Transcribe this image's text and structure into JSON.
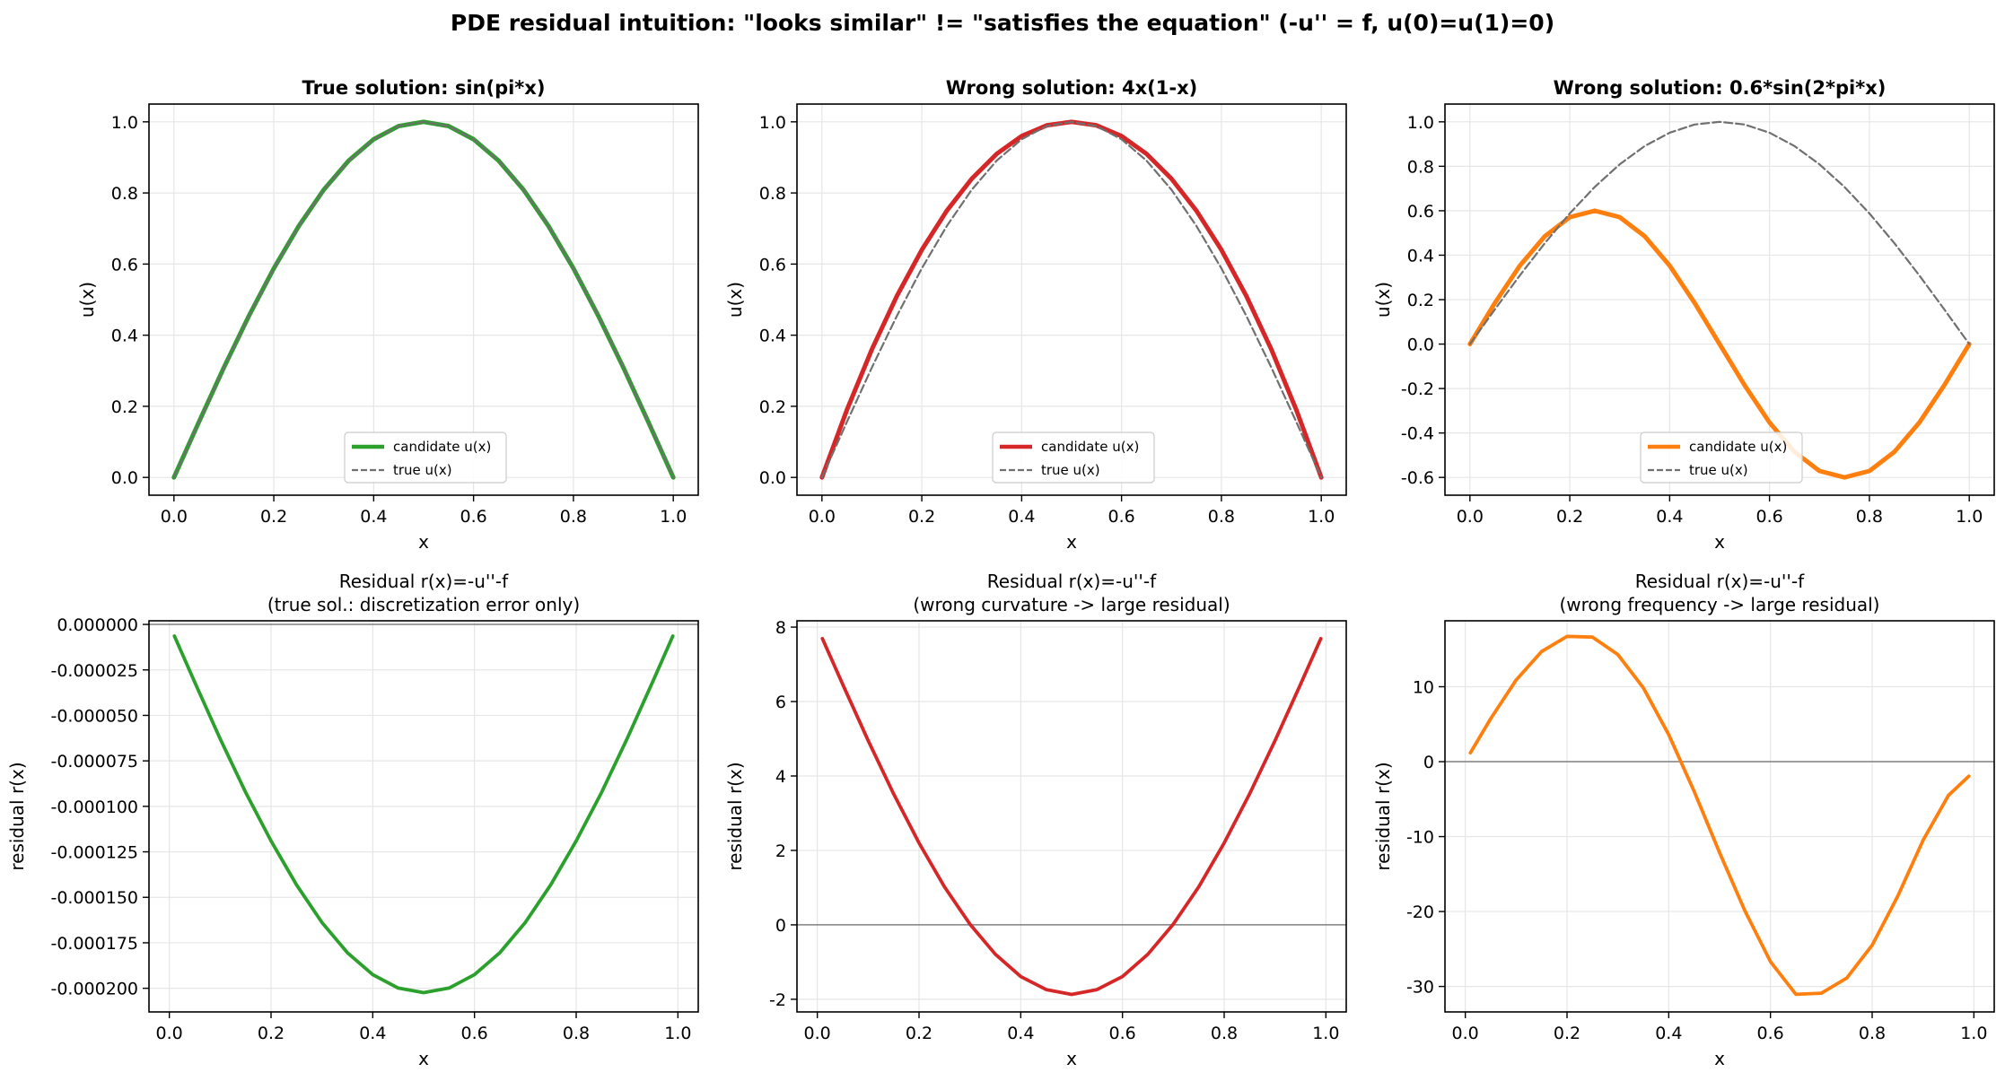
{
  "figure": {
    "suptitle": "PDE residual intuition: \"looks similar\" != \"satisfies the equation\"  (-u'' = f, u(0)=u(1)=0)"
  },
  "chart_data": [
    {
      "type": "line",
      "title": "True solution: sin(pi*x)",
      "title_bold": true,
      "xlabel": "x",
      "ylabel": "u(x)",
      "xlim": [
        -0.05,
        1.05
      ],
      "ylim": [
        -0.05,
        1.05
      ],
      "xticks": [
        0.0,
        0.2,
        0.4,
        0.6,
        0.8,
        1.0
      ],
      "xtick_labels": [
        "0.0",
        "0.2",
        "0.4",
        "0.6",
        "0.8",
        "1.0"
      ],
      "yticks": [
        0.0,
        0.2,
        0.4,
        0.6,
        0.8,
        1.0
      ],
      "ytick_labels": [
        "0.0",
        "0.2",
        "0.4",
        "0.6",
        "0.8",
        "1.0"
      ],
      "grid": true,
      "legend": "lower-center",
      "series": [
        {
          "name": "candidate u(x)",
          "color": "#2ca02c",
          "style": "solid",
          "x": [
            0.0,
            0.05,
            0.1,
            0.15,
            0.2,
            0.25,
            0.3,
            0.35,
            0.4,
            0.45,
            0.5,
            0.55,
            0.6,
            0.65,
            0.7,
            0.75,
            0.8,
            0.85,
            0.9,
            0.95,
            1.0
          ],
          "y": [
            0.0,
            0.156,
            0.309,
            0.454,
            0.588,
            0.707,
            0.809,
            0.891,
            0.951,
            0.988,
            1.0,
            0.988,
            0.951,
            0.891,
            0.809,
            0.707,
            0.588,
            0.454,
            0.309,
            0.156,
            0.0
          ]
        },
        {
          "name": "true u(x)",
          "color": "#707070",
          "style": "dashed",
          "x": [
            0.0,
            0.05,
            0.1,
            0.15,
            0.2,
            0.25,
            0.3,
            0.35,
            0.4,
            0.45,
            0.5,
            0.55,
            0.6,
            0.65,
            0.7,
            0.75,
            0.8,
            0.85,
            0.9,
            0.95,
            1.0
          ],
          "y": [
            0.0,
            0.156,
            0.309,
            0.454,
            0.588,
            0.707,
            0.809,
            0.891,
            0.951,
            0.988,
            1.0,
            0.988,
            0.951,
            0.891,
            0.809,
            0.707,
            0.588,
            0.454,
            0.309,
            0.156,
            0.0
          ]
        }
      ]
    },
    {
      "type": "line",
      "title": "Wrong solution: 4x(1-x)",
      "title_bold": true,
      "xlabel": "x",
      "ylabel": "u(x)",
      "xlim": [
        -0.05,
        1.05
      ],
      "ylim": [
        -0.05,
        1.05
      ],
      "xticks": [
        0.0,
        0.2,
        0.4,
        0.6,
        0.8,
        1.0
      ],
      "xtick_labels": [
        "0.0",
        "0.2",
        "0.4",
        "0.6",
        "0.8",
        "1.0"
      ],
      "yticks": [
        0.0,
        0.2,
        0.4,
        0.6,
        0.8,
        1.0
      ],
      "ytick_labels": [
        "0.0",
        "0.2",
        "0.4",
        "0.6",
        "0.8",
        "1.0"
      ],
      "grid": true,
      "legend": "lower-center",
      "series": [
        {
          "name": "candidate u(x)",
          "color": "#d62728",
          "style": "solid",
          "x": [
            0.0,
            0.05,
            0.1,
            0.15,
            0.2,
            0.25,
            0.3,
            0.35,
            0.4,
            0.45,
            0.5,
            0.55,
            0.6,
            0.65,
            0.7,
            0.75,
            0.8,
            0.85,
            0.9,
            0.95,
            1.0
          ],
          "y": [
            0.0,
            0.19,
            0.36,
            0.51,
            0.64,
            0.75,
            0.84,
            0.91,
            0.96,
            0.99,
            1.0,
            0.99,
            0.96,
            0.91,
            0.84,
            0.75,
            0.64,
            0.51,
            0.36,
            0.19,
            0.0
          ]
        },
        {
          "name": "true u(x)",
          "color": "#707070",
          "style": "dashed",
          "x": [
            0.0,
            0.05,
            0.1,
            0.15,
            0.2,
            0.25,
            0.3,
            0.35,
            0.4,
            0.45,
            0.5,
            0.55,
            0.6,
            0.65,
            0.7,
            0.75,
            0.8,
            0.85,
            0.9,
            0.95,
            1.0
          ],
          "y": [
            0.0,
            0.156,
            0.309,
            0.454,
            0.588,
            0.707,
            0.809,
            0.891,
            0.951,
            0.988,
            1.0,
            0.988,
            0.951,
            0.891,
            0.809,
            0.707,
            0.588,
            0.454,
            0.309,
            0.156,
            0.0
          ]
        }
      ]
    },
    {
      "type": "line",
      "title": "Wrong solution: 0.6*sin(2*pi*x)",
      "title_bold": true,
      "xlabel": "x",
      "ylabel": "u(x)",
      "xlim": [
        -0.05,
        1.05
      ],
      "ylim": [
        -0.68,
        1.08
      ],
      "xticks": [
        0.0,
        0.2,
        0.4,
        0.6,
        0.8,
        1.0
      ],
      "xtick_labels": [
        "0.0",
        "0.2",
        "0.4",
        "0.6",
        "0.8",
        "1.0"
      ],
      "yticks": [
        -0.6,
        -0.4,
        -0.2,
        0.0,
        0.2,
        0.4,
        0.6,
        0.8,
        1.0
      ],
      "ytick_labels": [
        "-0.6",
        "-0.4",
        "-0.2",
        "0.0",
        "0.2",
        "0.4",
        "0.6",
        "0.8",
        "1.0"
      ],
      "grid": true,
      "legend": "lower-center",
      "series": [
        {
          "name": "candidate u(x)",
          "color": "#ff7f0e",
          "style": "solid",
          "x": [
            0.0,
            0.05,
            0.1,
            0.15,
            0.2,
            0.25,
            0.3,
            0.35,
            0.4,
            0.45,
            0.5,
            0.55,
            0.6,
            0.65,
            0.7,
            0.75,
            0.8,
            0.85,
            0.9,
            0.95,
            1.0
          ],
          "y": [
            0.0,
            0.185,
            0.353,
            0.485,
            0.571,
            0.6,
            0.571,
            0.485,
            0.353,
            0.185,
            0.0,
            -0.185,
            -0.353,
            -0.485,
            -0.571,
            -0.6,
            -0.571,
            -0.485,
            -0.353,
            -0.185,
            0.0
          ]
        },
        {
          "name": "true u(x)",
          "color": "#707070",
          "style": "dashed",
          "x": [
            0.0,
            0.05,
            0.1,
            0.15,
            0.2,
            0.25,
            0.3,
            0.35,
            0.4,
            0.45,
            0.5,
            0.55,
            0.6,
            0.65,
            0.7,
            0.75,
            0.8,
            0.85,
            0.9,
            0.95,
            1.0
          ],
          "y": [
            0.0,
            0.156,
            0.309,
            0.454,
            0.588,
            0.707,
            0.809,
            0.891,
            0.951,
            0.988,
            1.0,
            0.988,
            0.951,
            0.891,
            0.809,
            0.707,
            0.588,
            0.454,
            0.309,
            0.156,
            0.0
          ]
        }
      ]
    },
    {
      "type": "line",
      "title": "Residual r(x)=-u''-f\n(true sol.: discretization error only)",
      "title_bold": false,
      "xlabel": "x",
      "ylabel": "residual r(x)",
      "xlim": [
        -0.04,
        1.04
      ],
      "ylim": [
        -0.000213,
        2e-06
      ],
      "xticks": [
        0.0,
        0.2,
        0.4,
        0.6,
        0.8,
        1.0
      ],
      "xtick_labels": [
        "0.0",
        "0.2",
        "0.4",
        "0.6",
        "0.8",
        "1.0"
      ],
      "yticks": [
        0.0,
        -2.5e-05,
        -5e-05,
        -7.5e-05,
        -0.0001,
        -0.000125,
        -0.00015,
        -0.000175,
        -0.0002
      ],
      "ytick_labels": [
        "0.000000",
        "-0.000025",
        "-0.000050",
        "-0.000075",
        "-0.000100",
        "-0.000125",
        "-0.000150",
        "-0.000175",
        "-0.000200"
      ],
      "grid": true,
      "zero_line": true,
      "series": [
        {
          "color": "#2ca02c",
          "style": "solid",
          "x": [
            0.01,
            0.05,
            0.1,
            0.15,
            0.2,
            0.25,
            0.3,
            0.35,
            0.4,
            0.45,
            0.5,
            0.55,
            0.6,
            0.65,
            0.7,
            0.75,
            0.8,
            0.85,
            0.9,
            0.95,
            0.99
          ],
          "y": [
            -6.4e-06,
            -3.18e-05,
            -6.29e-05,
            -9.23e-05,
            -0.000119,
            -0.0001431,
            -0.0001638,
            -0.0001804,
            -0.0001925,
            -0.0001999,
            -0.0002024,
            -0.0001999,
            -0.0001925,
            -0.0001804,
            -0.0001638,
            -0.0001431,
            -0.000119,
            -9.23e-05,
            -6.29e-05,
            -3.18e-05,
            -6.4e-06
          ]
        }
      ]
    },
    {
      "type": "line",
      "title": "Residual r(x)=-u''-f\n(wrong curvature -> large residual)",
      "title_bold": false,
      "xlabel": "x",
      "ylabel": "residual r(x)",
      "xlim": [
        -0.04,
        1.04
      ],
      "ylim": [
        -2.34,
        8.17
      ],
      "xticks": [
        0.0,
        0.2,
        0.4,
        0.6,
        0.8,
        1.0
      ],
      "xtick_labels": [
        "0.0",
        "0.2",
        "0.4",
        "0.6",
        "0.8",
        "1.0"
      ],
      "yticks": [
        -2,
        0,
        2,
        4,
        6,
        8
      ],
      "ytick_labels": [
        "-2",
        "0",
        "2",
        "4",
        "6",
        "8"
      ],
      "grid": true,
      "zero_line": true,
      "series": [
        {
          "color": "#d62728",
          "style": "solid",
          "x": [
            0.01,
            0.05,
            0.1,
            0.15,
            0.2,
            0.25,
            0.3,
            0.35,
            0.4,
            0.45,
            0.5,
            0.55,
            0.6,
            0.65,
            0.7,
            0.75,
            0.8,
            0.85,
            0.9,
            0.95,
            0.99
          ],
          "y": [
            7.69,
            6.46,
            4.95,
            3.52,
            2.2,
            1.02,
            0.02,
            -0.79,
            -1.39,
            -1.74,
            -1.87,
            -1.74,
            -1.39,
            -0.79,
            0.02,
            1.02,
            2.2,
            3.52,
            4.95,
            6.46,
            7.69
          ]
        }
      ]
    },
    {
      "type": "line",
      "title": "Residual r(x)=-u''-f\n(wrong frequency -> large residual)",
      "title_bold": false,
      "xlabel": "x",
      "ylabel": "residual r(x)",
      "xlim": [
        -0.04,
        1.04
      ],
      "ylim": [
        -33.4,
        18.8
      ],
      "xticks": [
        0.0,
        0.2,
        0.4,
        0.6,
        0.8,
        1.0
      ],
      "xtick_labels": [
        "0.0",
        "0.2",
        "0.4",
        "0.6",
        "0.8",
        "1.0"
      ],
      "yticks": [
        -30,
        -20,
        -10,
        0,
        10
      ],
      "ytick_labels": [
        "-30",
        "-20",
        "-10",
        "0",
        "10"
      ],
      "grid": true,
      "zero_line": true,
      "series": [
        {
          "color": "#ff7f0e",
          "style": "solid",
          "x": [
            0.01,
            0.05,
            0.1,
            0.15,
            0.2,
            0.25,
            0.3,
            0.35,
            0.4,
            0.45,
            0.5,
            0.55,
            0.6,
            0.65,
            0.7,
            0.75,
            0.8,
            0.85,
            0.9,
            0.95,
            0.99
          ],
          "y": [
            1.18,
            5.75,
            10.9,
            14.7,
            16.72,
            16.62,
            14.29,
            9.86,
            3.6,
            -3.97,
            -12.15,
            -19.94,
            -26.69,
            -31.05,
            -30.9,
            -28.88,
            -24.49,
            -17.99,
            -10.5,
            -4.5,
            -1.94
          ]
        }
      ]
    }
  ]
}
